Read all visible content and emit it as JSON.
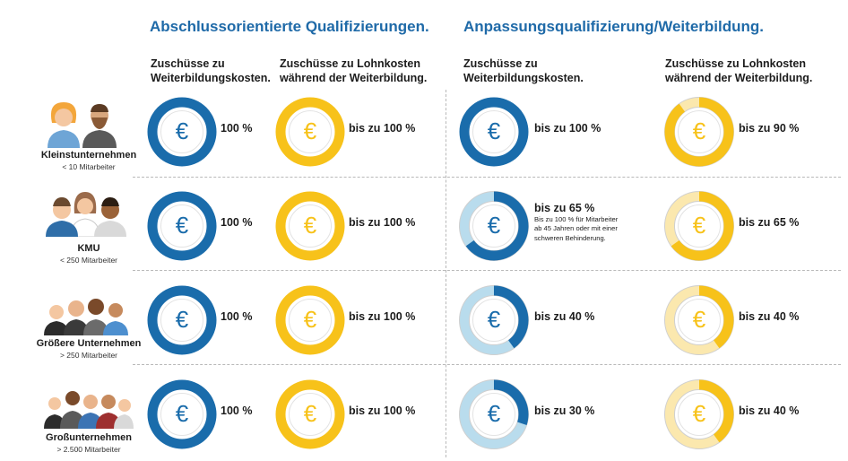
{
  "colors": {
    "blue": "#1a6cab",
    "blue_light": "#b9dced",
    "yellow": "#f7c21a",
    "yellow_light": "#fbe8ae",
    "empty": "#e6e6e6",
    "title": "#1f6aa8"
  },
  "sections": [
    {
      "title": "Abschlussorientierte Qualifizierungen."
    },
    {
      "title": "Anpassungsqualifizierung/Weiterbildung."
    }
  ],
  "columns": [
    {
      "header_line1": "Zuschüsse zu",
      "header_line2": "Weiterbildungskosten."
    },
    {
      "header_line1": "Zuschüsse zu Lohnkosten",
      "header_line2": "während der Weiterbildung."
    },
    {
      "header_line1": "Zuschüsse zu",
      "header_line2": "Weiterbildungskosten."
    },
    {
      "header_line1": "Zuschüsse zu Lohnkosten",
      "header_line2": "während der Weiterbildung."
    }
  ],
  "companies": [
    {
      "name": "Kleinstunternehmen",
      "size": "< 10 Mitarbeiter"
    },
    {
      "name": "KMU",
      "size": "< 250 Mitarbeiter"
    },
    {
      "name": "Größere Unternehmen",
      "size": "> 250 Mitarbeiter"
    },
    {
      "name": "Großunternehmen",
      "size": "> 2.500 Mitarbeiter"
    }
  ],
  "values": [
    [
      "100 %",
      "bis zu 100 %",
      "bis zu 100 %",
      "bis zu 90 %"
    ],
    [
      "100 %",
      "bis zu 100 %",
      "bis zu 65 %",
      "bis zu 65 %"
    ],
    [
      "100 %",
      "bis zu 100 %",
      "bis zu 40 %",
      "bis zu 40 %"
    ],
    [
      "100 %",
      "bis zu 100 %",
      "bis zu 30 %",
      "bis zu 40 %"
    ]
  ],
  "note_kmu": {
    "line1": "Bis zu 100 % für Mitarbeiter",
    "line2": "ab 45 Jahren oder mit einer",
    "line3": "schweren Behinderung."
  },
  "euro_symbol": "€",
  "chart_data": {
    "type": "pie",
    "unit": "%",
    "categories": [
      "Kleinstunternehmen",
      "KMU",
      "Größere Unternehmen",
      "Großunternehmen"
    ],
    "series": [
      {
        "values": [
          100,
          100,
          100,
          100
        ]
      },
      {
        "values": [
          100,
          100,
          100,
          100
        ]
      },
      {
        "values": [
          100,
          65,
          40,
          30
        ],
        "secondary_values": [
          null,
          100,
          null,
          null
        ]
      },
      {
        "values": [
          90,
          65,
          40,
          40
        ]
      }
    ]
  }
}
